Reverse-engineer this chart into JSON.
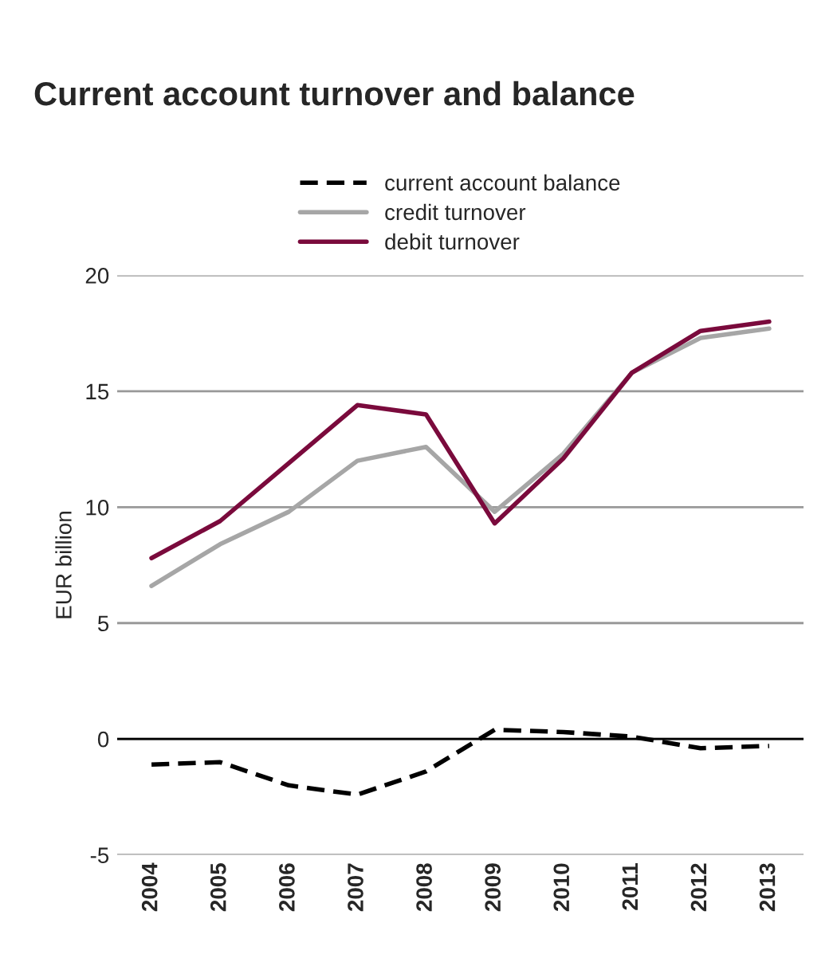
{
  "chart_data": {
    "type": "line",
    "title": "Current account turnover and balance",
    "ylabel": "EUR billion",
    "categories": [
      "2004",
      "2005",
      "2006",
      "2007",
      "2008",
      "2009",
      "2010",
      "2011",
      "2012",
      "2013"
    ],
    "series": [
      {
        "name": "current account balance",
        "color": "#000000",
        "line_style": "dashed",
        "values": [
          -1.1,
          -1.0,
          -2.0,
          -2.4,
          -1.4,
          0.4,
          0.3,
          0.1,
          -0.4,
          -0.3
        ]
      },
      {
        "name": "credit turnover",
        "color": "#a6a6a6",
        "line_style": "solid",
        "values": [
          6.6,
          8.4,
          9.8,
          12.0,
          12.6,
          9.8,
          12.3,
          15.8,
          17.3,
          17.7
        ]
      },
      {
        "name": "debit turnover",
        "color": "#7a0a3c",
        "line_style": "solid",
        "values": [
          7.8,
          9.4,
          11.9,
          14.4,
          14.0,
          9.3,
          12.1,
          15.8,
          17.6,
          18.0
        ]
      }
    ],
    "ylim": [
      -5,
      20
    ],
    "yticks": [
      -5,
      0,
      5,
      10,
      15,
      20
    ],
    "grid": "y",
    "legend": "top",
    "ref_lines": [
      {
        "axis": "y",
        "value": 0,
        "color": "#000000"
      }
    ]
  }
}
